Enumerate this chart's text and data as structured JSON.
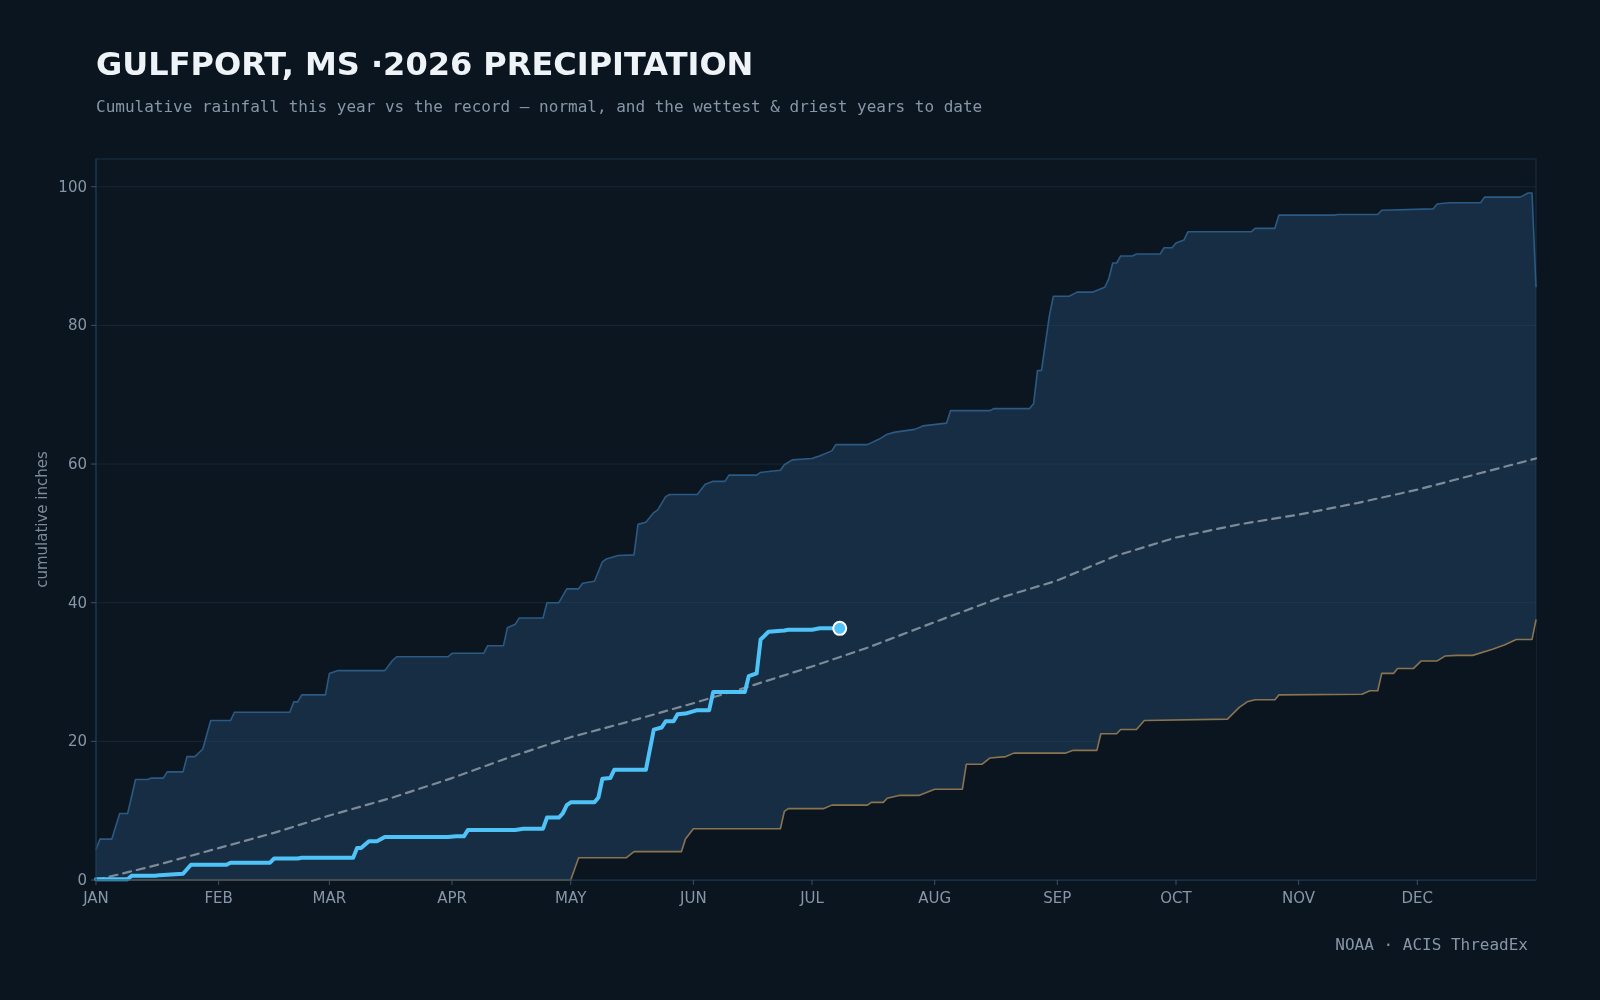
{
  "chart_data": {
    "type": "line",
    "title": "GULFPORT, MS ·2026 PRECIPITATION",
    "subtitle": "Cumulative rainfall this year vs the record — normal, and the wettest & driest years to date",
    "ylabel": "cumulative inches",
    "annotations": [
      "NOAA · ACIS ThreadEx"
    ],
    "xlim": [
      "--01-01",
      "--12-31"
    ],
    "xticks": [
      {
        "value": "--01-01",
        "label": "JAN"
      },
      {
        "value": "--02-01",
        "label": "FEB"
      },
      {
        "value": "--03-01",
        "label": "MAR"
      },
      {
        "value": "--04-01",
        "label": "APR"
      },
      {
        "value": "--05-01",
        "label": "MAY"
      },
      {
        "value": "--06-01",
        "label": "JUN"
      },
      {
        "value": "--07-01",
        "label": "JUL"
      },
      {
        "value": "--08-01",
        "label": "AUG"
      },
      {
        "value": "--09-01",
        "label": "SEP"
      },
      {
        "value": "--10-01",
        "label": "OCT"
      },
      {
        "value": "--11-01",
        "label": "NOV"
      },
      {
        "value": "--12-01",
        "label": "DEC"
      }
    ],
    "ylim": [
      0,
      104
    ],
    "yticks": [
      0,
      20,
      40,
      60,
      80,
      100
    ],
    "grid": "y",
    "series": [
      {
        "type": "area",
        "color": "#2b5a84",
        "x": [
          "--01-01",
          "--01-02",
          "--01-05",
          "--01-07",
          "--01-09",
          "--01-11",
          "--01-14",
          "--01-15",
          "--01-18",
          "--01-19",
          "--01-23",
          "--01-24",
          "--01-26",
          "--01-28",
          "--01-30",
          "--02-04",
          "--02-05",
          "--02-19",
          "--02-20",
          "--02-21",
          "--02-22",
          "--02-28",
          "--03-01",
          "--03-03",
          "--03-15",
          "--03-17",
          "--03-18",
          "--03-31",
          "--04-01",
          "--04-09",
          "--04-10",
          "--04-14",
          "--04-15",
          "--04-17",
          "--04-18",
          "--04-24",
          "--04-25",
          "--04-28",
          "--04-30",
          "--05-03",
          "--05-04",
          "--05-07",
          "--05-09",
          "--05-10",
          "--05-13",
          "--05-17",
          "--05-18",
          "--05-20",
          "--05-22",
          "--05-23",
          "--05-25",
          "--05-26",
          "--06-02",
          "--06-04",
          "--06-06",
          "--06-09",
          "--06-10",
          "--06-17",
          "--06-18",
          "--06-23",
          "--06-24",
          "--06-26",
          "--07-01",
          "--07-03",
          "--07-06",
          "--07-07",
          "--07-15",
          "--07-18",
          "--07-20",
          "--07-22",
          "--07-27",
          "--07-29",
          "--08-04",
          "--08-05",
          "--08-15",
          "--08-16",
          "--08-25",
          "--08-26",
          "--08-27",
          "--08-28",
          "--08-30",
          "--08-31",
          "--09-04",
          "--09-06",
          "--09-10",
          "--09-13",
          "--09-14",
          "--09-15",
          "--09-16",
          "--09-17",
          "--09-20",
          "--09-21",
          "--09-27",
          "--09-28",
          "--09-30",
          "--10-01",
          "--10-03",
          "--10-04",
          "--10-20",
          "--10-21",
          "--10-26",
          "--10-27",
          "--11-10",
          "--11-11",
          "--11-21",
          "--11-22",
          "--12-05",
          "--12-06",
          "--12-09",
          "--12-17",
          "--12-18",
          "--12-27",
          "--12-29",
          "--12-30",
          "--12-31"
        ],
        "values": [
          4.4,
          5.9,
          5.9,
          9.6,
          9.6,
          14.5,
          14.5,
          14.7,
          14.7,
          15.6,
          15.6,
          17.8,
          17.8,
          18.9,
          23,
          23,
          24.2,
          24.2,
          25.7,
          25.7,
          26.7,
          26.7,
          29.8,
          30.2,
          30.2,
          31.7,
          32.2,
          32.2,
          32.7,
          32.7,
          33.8,
          33.8,
          36.4,
          36.9,
          37.8,
          37.8,
          40,
          40,
          42,
          42,
          42.8,
          43.1,
          45.9,
          46.3,
          46.8,
          46.9,
          51.3,
          51.6,
          53,
          53.4,
          55.3,
          55.6,
          55.6,
          57.1,
          57.5,
          57.5,
          58.4,
          58.4,
          58.8,
          59.1,
          59.9,
          60.6,
          60.8,
          61.2,
          61.9,
          62.8,
          62.8,
          63.6,
          64.3,
          64.6,
          65,
          65.5,
          65.9,
          67.7,
          67.7,
          68,
          68,
          68.7,
          73.5,
          73.5,
          81.4,
          84.2,
          84.2,
          84.8,
          84.8,
          85.5,
          86.7,
          89,
          89,
          90,
          90,
          90.3,
          90.3,
          91.2,
          91.2,
          91.9,
          92.3,
          93.5,
          93.5,
          94,
          94,
          95.9,
          95.9,
          96,
          96,
          96.6,
          96.8,
          97.5,
          97.7,
          97.7,
          98.5,
          98.5,
          99.1,
          99.1,
          85.5
        ]
      },
      {
        "type": "line",
        "color": "#8a7450",
        "x": [
          "--01-01",
          "--05-01",
          "--05-03",
          "--05-15",
          "--05-17",
          "--05-29",
          "--05-30",
          "--06-01",
          "--06-23",
          "--06-24",
          "--06-25",
          "--07-04",
          "--07-06",
          "--07-15",
          "--07-16",
          "--07-19",
          "--07-20",
          "--07-23",
          "--07-28",
          "--08-01",
          "--08-08",
          "--08-09",
          "--08-13",
          "--08-15",
          "--08-19",
          "--08-21",
          "--09-03",
          "--09-05",
          "--09-11",
          "--09-12",
          "--09-16",
          "--09-17",
          "--09-21",
          "--09-23",
          "--10-14",
          "--10-17",
          "--10-19",
          "--10-21",
          "--10-26",
          "--10-27",
          "--11-17",
          "--11-19",
          "--11-21",
          "--11-22",
          "--11-25",
          "--11-26",
          "--11-30",
          "--12-02",
          "--12-06",
          "--12-08",
          "--12-11",
          "--12-15",
          "--12-20",
          "--12-23",
          "--12-26",
          "--12-30",
          "--12-31"
        ],
        "values": [
          0,
          0,
          3.2,
          3.2,
          4.1,
          4.1,
          5.9,
          7.4,
          7.4,
          9.9,
          10.3,
          10.3,
          10.8,
          10.8,
          11.2,
          11.2,
          11.8,
          12.2,
          12.2,
          13.1,
          13.1,
          16.7,
          16.7,
          17.6,
          17.8,
          18.3,
          18.3,
          18.7,
          18.7,
          21.1,
          21.1,
          21.7,
          21.7,
          23,
          23.2,
          24.9,
          25.7,
          26,
          26,
          26.7,
          26.8,
          27.3,
          27.3,
          29.8,
          29.8,
          30.5,
          30.5,
          31.6,
          31.6,
          32.3,
          32.4,
          32.4,
          33.3,
          33.9,
          34.7,
          34.7,
          37.5
        ]
      },
      {
        "type": "line",
        "color": "#7d8b99",
        "line_style": "dashed",
        "x": [
          "--01-01",
          "--01-16",
          "--02-01",
          "--02-15",
          "--03-01",
          "--03-17",
          "--04-01",
          "--04-16",
          "--05-01",
          "--05-16",
          "--06-01",
          "--06-15",
          "--07-01",
          "--07-15",
          "--08-01",
          "--08-17",
          "--09-01",
          "--09-16",
          "--10-01",
          "--10-17",
          "--11-01",
          "--11-16",
          "--12-01",
          "--12-17",
          "--12-31"
        ],
        "values": [
          0,
          2.1,
          4.6,
          6.8,
          9.3,
          11.9,
          14.7,
          17.8,
          20.6,
          22.9,
          25.5,
          27.9,
          30.8,
          33.5,
          37.2,
          40.6,
          43.2,
          46.8,
          49.4,
          51.3,
          52.7,
          54.4,
          56.3,
          58.7,
          60.8
        ]
      },
      {
        "type": "line",
        "color": "#4fc3f7",
        "x": [
          "--01-01",
          "--01-09",
          "--01-10",
          "--01-16",
          "--01-17",
          "--01-23",
          "--01-25",
          "--02-03",
          "--02-04",
          "--02-14",
          "--02-15",
          "--02-21",
          "--02-22",
          "--03-07",
          "--03-08",
          "--03-09",
          "--03-11",
          "--03-13",
          "--03-15",
          "--03-31",
          "--04-02",
          "--04-04",
          "--04-05",
          "--04-17",
          "--04-19",
          "--04-24",
          "--04-25",
          "--04-28",
          "--04-29",
          "--04-30",
          "--05-01",
          "--05-07",
          "--05-08",
          "--05-09",
          "--05-11",
          "--05-12",
          "--05-20",
          "--05-22",
          "--05-24",
          "--05-25",
          "--05-27",
          "--05-28",
          "--05-30",
          "--06-02",
          "--06-05",
          "--06-06",
          "--06-14",
          "--06-15",
          "--06-17",
          "--06-18",
          "--06-20",
          "--06-24",
          "--06-25",
          "--07-01",
          "--07-03",
          "--07-08"
        ],
        "values": [
          0.1,
          0.1,
          0.6,
          0.6,
          0.7,
          0.9,
          2.2,
          2.2,
          2.5,
          2.5,
          3.1,
          3.1,
          3.2,
          3.2,
          4.6,
          4.6,
          5.6,
          5.6,
          6.2,
          6.2,
          6.3,
          6.3,
          7.2,
          7.2,
          7.4,
          7.4,
          9,
          9,
          9.6,
          10.8,
          11.2,
          11.2,
          11.9,
          14.6,
          14.7,
          15.9,
          15.9,
          21.7,
          22,
          22.9,
          22.9,
          23.9,
          24,
          24.5,
          24.5,
          27.1,
          27.1,
          29.4,
          29.8,
          34.7,
          35.8,
          36,
          36.1,
          36.1,
          36.3,
          36.3
        ]
      }
    ]
  }
}
